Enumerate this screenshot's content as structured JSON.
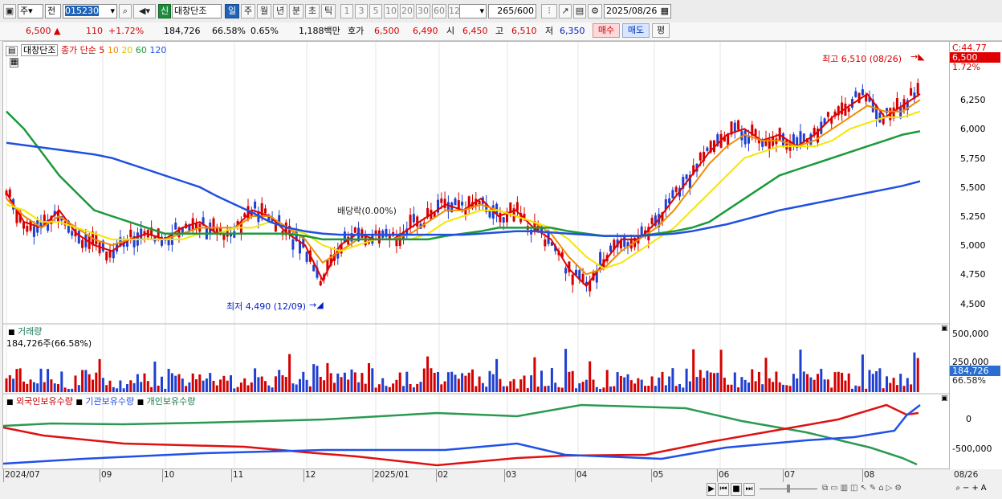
{
  "toolbar": {
    "type_select": "주",
    "range_select": "전",
    "code": "015230",
    "credit_badge": "신",
    "stock_name": "대창단조",
    "periods": [
      "일",
      "주",
      "월",
      "년",
      "분",
      "초",
      "틱"
    ],
    "minutes": [
      "1",
      "3",
      "5",
      "10",
      "20",
      "30",
      "60",
      "120"
    ],
    "count": "265",
    "count_total": "/600",
    "date": "2025/08/26"
  },
  "quote": {
    "price": "6,500",
    "change": "110",
    "change_pct": "+1.72%",
    "volume": "184,726",
    "volume_pct": "66.58%",
    "turnover": "0.65%",
    "amount": "1,188백만",
    "ask_label": "호가",
    "ask1": "6,500",
    "ask2": "6,490",
    "open_label": "시",
    "open": "6,450",
    "high_label": "고",
    "high": "6,510",
    "low_label": "저",
    "low": "6,350",
    "buy_label": "매수",
    "sell_label": "매도",
    "eval_label": "평"
  },
  "legend": {
    "name": "대창단조",
    "ma_label": "종가 단순",
    "ma5": "5",
    "ma10": "10",
    "ma20": "20",
    "ma60": "60",
    "ma120": "120",
    "volume_title": "거래량",
    "volume_value": "184,726주(66.58%)",
    "holders_foreign": "외국인보유수량",
    "holders_inst": "기관보유수량",
    "holders_indiv": "개인보유수량"
  },
  "annotations": {
    "high": "최고 6,510 (08/26)",
    "low": "최저 4,490 (12/09)",
    "dividend": "배당락(0.00%)"
  },
  "right_axis": {
    "c_value": "C:44.77",
    "price_tag": "6,500",
    "pct_tag": "1.72%",
    "price_ticks": [
      "6,250",
      "6,000",
      "5,750",
      "5,500",
      "5,250",
      "5,000",
      "4,750",
      "4,500"
    ],
    "vol_ticks": [
      "500,000",
      "250,000"
    ],
    "vol_tag": "184,726",
    "vol_pct": "66.58%",
    "hold_ticks": [
      "0",
      "-500,000"
    ]
  },
  "x_axis": [
    "2024/07",
    "09",
    "10",
    "11",
    "12",
    "2025/01",
    "02",
    "03",
    "04",
    "05",
    "06",
    "07",
    "08"
  ],
  "x_end": "08/26",
  "colors": {
    "up": "#d40000",
    "down": "#1f3fd0",
    "ma5": "#e30000",
    "ma10": "#f08c00",
    "ma20": "#f5e600",
    "ma60": "#1a9a3a",
    "ma120": "#2050e0",
    "foreign": "#e01010",
    "inst": "#2050e8",
    "indiv": "#2a9a50"
  },
  "chart_data": [
    {
      "type": "line",
      "title": "",
      "series": [
        {
          "name": "5",
          "values": [
            5450,
            5200,
            5150,
            5300,
            5100,
            5000,
            4950,
            5050,
            5100,
            5050,
            5150,
            5200,
            5100,
            5150,
            5300,
            5250,
            5100,
            5000,
            4700,
            5000,
            5100,
            5050,
            5050,
            5150,
            5250,
            5350,
            5300,
            5400,
            5250,
            5300,
            5150,
            5050,
            4800,
            4650,
            4850,
            5050,
            5050,
            5200,
            5400,
            5600,
            5800,
            5950,
            6000,
            5900,
            5950,
            5850,
            5950,
            6100,
            6200,
            6300,
            6100,
            6200,
            6300
          ]
        },
        {
          "name": "10",
          "values": [
            5400,
            5250,
            5150,
            5250,
            5150,
            5050,
            5000,
            5050,
            5050,
            5050,
            5100,
            5150,
            5150,
            5150,
            5250,
            5250,
            5150,
            5050,
            4850,
            4950,
            5050,
            5050,
            5050,
            5100,
            5200,
            5300,
            5300,
            5350,
            5300,
            5250,
            5200,
            5100,
            4900,
            4750,
            4800,
            4950,
            5050,
            5150,
            5300,
            5500,
            5700,
            5850,
            5950,
            5900,
            5900,
            5850,
            5900,
            6000,
            6100,
            6200,
            6150,
            6150,
            6250
          ]
        },
        {
          "name": "20",
          "values": [
            5350,
            5300,
            5200,
            5200,
            5150,
            5100,
            5050,
            5050,
            5050,
            5050,
            5050,
            5100,
            5100,
            5150,
            5150,
            5200,
            5150,
            5100,
            5000,
            4950,
            5000,
            5050,
            5050,
            5050,
            5100,
            5200,
            5250,
            5300,
            5300,
            5250,
            5200,
            5150,
            5050,
            4900,
            4800,
            4850,
            4950,
            5050,
            5150,
            5300,
            5450,
            5600,
            5750,
            5800,
            5850,
            5850,
            5850,
            5900,
            6000,
            6050,
            6100,
            6100,
            6150
          ]
        },
        {
          "name": "60",
          "values": [
            6150,
            6000,
            5800,
            5600,
            5450,
            5300,
            5250,
            5200,
            5150,
            5100,
            5100,
            5100,
            5100,
            5100,
            5100,
            5100,
            5100,
            5080,
            5050,
            5050,
            5050,
            5050,
            5050,
            5050,
            5050,
            5080,
            5100,
            5120,
            5150,
            5150,
            5150,
            5150,
            5120,
            5100,
            5080,
            5080,
            5080,
            5100,
            5120,
            5150,
            5200,
            5300,
            5400,
            5500,
            5600,
            5650,
            5700,
            5750,
            5800,
            5850,
            5900,
            5950,
            5980
          ]
        },
        {
          "name": "120",
          "values": [
            5880,
            5860,
            5840,
            5820,
            5800,
            5780,
            5750,
            5700,
            5650,
            5600,
            5550,
            5500,
            5420,
            5350,
            5280,
            5200,
            5150,
            5120,
            5100,
            5090,
            5090,
            5090,
            5090,
            5090,
            5090,
            5090,
            5090,
            5100,
            5110,
            5120,
            5120,
            5110,
            5100,
            5090,
            5080,
            5080,
            5080,
            5090,
            5100,
            5120,
            5150,
            5180,
            5220,
            5260,
            5300,
            5330,
            5360,
            5390,
            5420,
            5450,
            5480,
            5510,
            5550
          ]
        }
      ]
    }
  ]
}
